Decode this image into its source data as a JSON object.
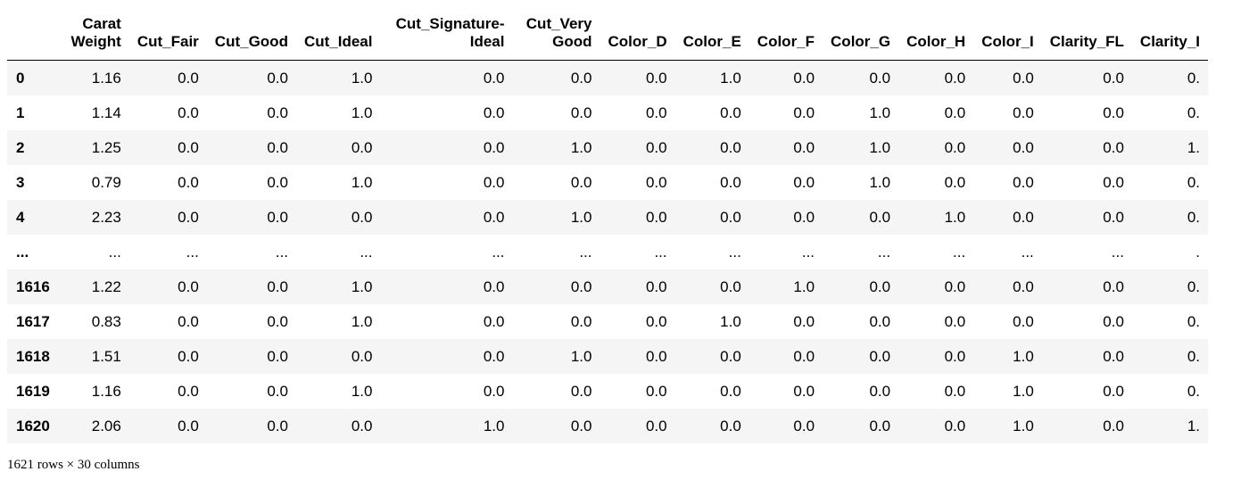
{
  "table": {
    "index_header": "",
    "columns": [
      "Carat Weight",
      "Cut_Fair",
      "Cut_Good",
      "Cut_Ideal",
      "Cut_Signature-Ideal",
      "Cut_Very Good",
      "Color_D",
      "Color_E",
      "Color_F",
      "Color_G",
      "Color_H",
      "Color_I",
      "Clarity_FL",
      "Clarity_I"
    ],
    "rows": [
      {
        "index": "0",
        "cells": [
          "1.16",
          "0.0",
          "0.0",
          "1.0",
          "0.0",
          "0.0",
          "0.0",
          "1.0",
          "0.0",
          "0.0",
          "0.0",
          "0.0",
          "0.0",
          "0."
        ]
      },
      {
        "index": "1",
        "cells": [
          "1.14",
          "0.0",
          "0.0",
          "1.0",
          "0.0",
          "0.0",
          "0.0",
          "0.0",
          "0.0",
          "1.0",
          "0.0",
          "0.0",
          "0.0",
          "0."
        ]
      },
      {
        "index": "2",
        "cells": [
          "1.25",
          "0.0",
          "0.0",
          "0.0",
          "0.0",
          "1.0",
          "0.0",
          "0.0",
          "0.0",
          "1.0",
          "0.0",
          "0.0",
          "0.0",
          "1."
        ]
      },
      {
        "index": "3",
        "cells": [
          "0.79",
          "0.0",
          "0.0",
          "1.0",
          "0.0",
          "0.0",
          "0.0",
          "0.0",
          "0.0",
          "1.0",
          "0.0",
          "0.0",
          "0.0",
          "0."
        ]
      },
      {
        "index": "4",
        "cells": [
          "2.23",
          "0.0",
          "0.0",
          "0.0",
          "0.0",
          "1.0",
          "0.0",
          "0.0",
          "0.0",
          "0.0",
          "1.0",
          "0.0",
          "0.0",
          "0."
        ]
      },
      {
        "index": "...",
        "cells": [
          "...",
          "...",
          "...",
          "...",
          "...",
          "...",
          "...",
          "...",
          "...",
          "...",
          "...",
          "...",
          "...",
          "."
        ]
      },
      {
        "index": "1616",
        "cells": [
          "1.22",
          "0.0",
          "0.0",
          "1.0",
          "0.0",
          "0.0",
          "0.0",
          "0.0",
          "1.0",
          "0.0",
          "0.0",
          "0.0",
          "0.0",
          "0."
        ]
      },
      {
        "index": "1617",
        "cells": [
          "0.83",
          "0.0",
          "0.0",
          "1.0",
          "0.0",
          "0.0",
          "0.0",
          "1.0",
          "0.0",
          "0.0",
          "0.0",
          "0.0",
          "0.0",
          "0."
        ]
      },
      {
        "index": "1618",
        "cells": [
          "1.51",
          "0.0",
          "0.0",
          "0.0",
          "0.0",
          "1.0",
          "0.0",
          "0.0",
          "0.0",
          "0.0",
          "0.0",
          "1.0",
          "0.0",
          "0."
        ]
      },
      {
        "index": "1619",
        "cells": [
          "1.16",
          "0.0",
          "0.0",
          "1.0",
          "0.0",
          "0.0",
          "0.0",
          "0.0",
          "0.0",
          "0.0",
          "0.0",
          "1.0",
          "0.0",
          "0."
        ]
      },
      {
        "index": "1620",
        "cells": [
          "2.06",
          "0.0",
          "0.0",
          "0.0",
          "1.0",
          "0.0",
          "0.0",
          "0.0",
          "0.0",
          "0.0",
          "0.0",
          "1.0",
          "0.0",
          "1."
        ]
      }
    ]
  },
  "footer": {
    "shape_text": "1621 rows × 30 columns"
  }
}
